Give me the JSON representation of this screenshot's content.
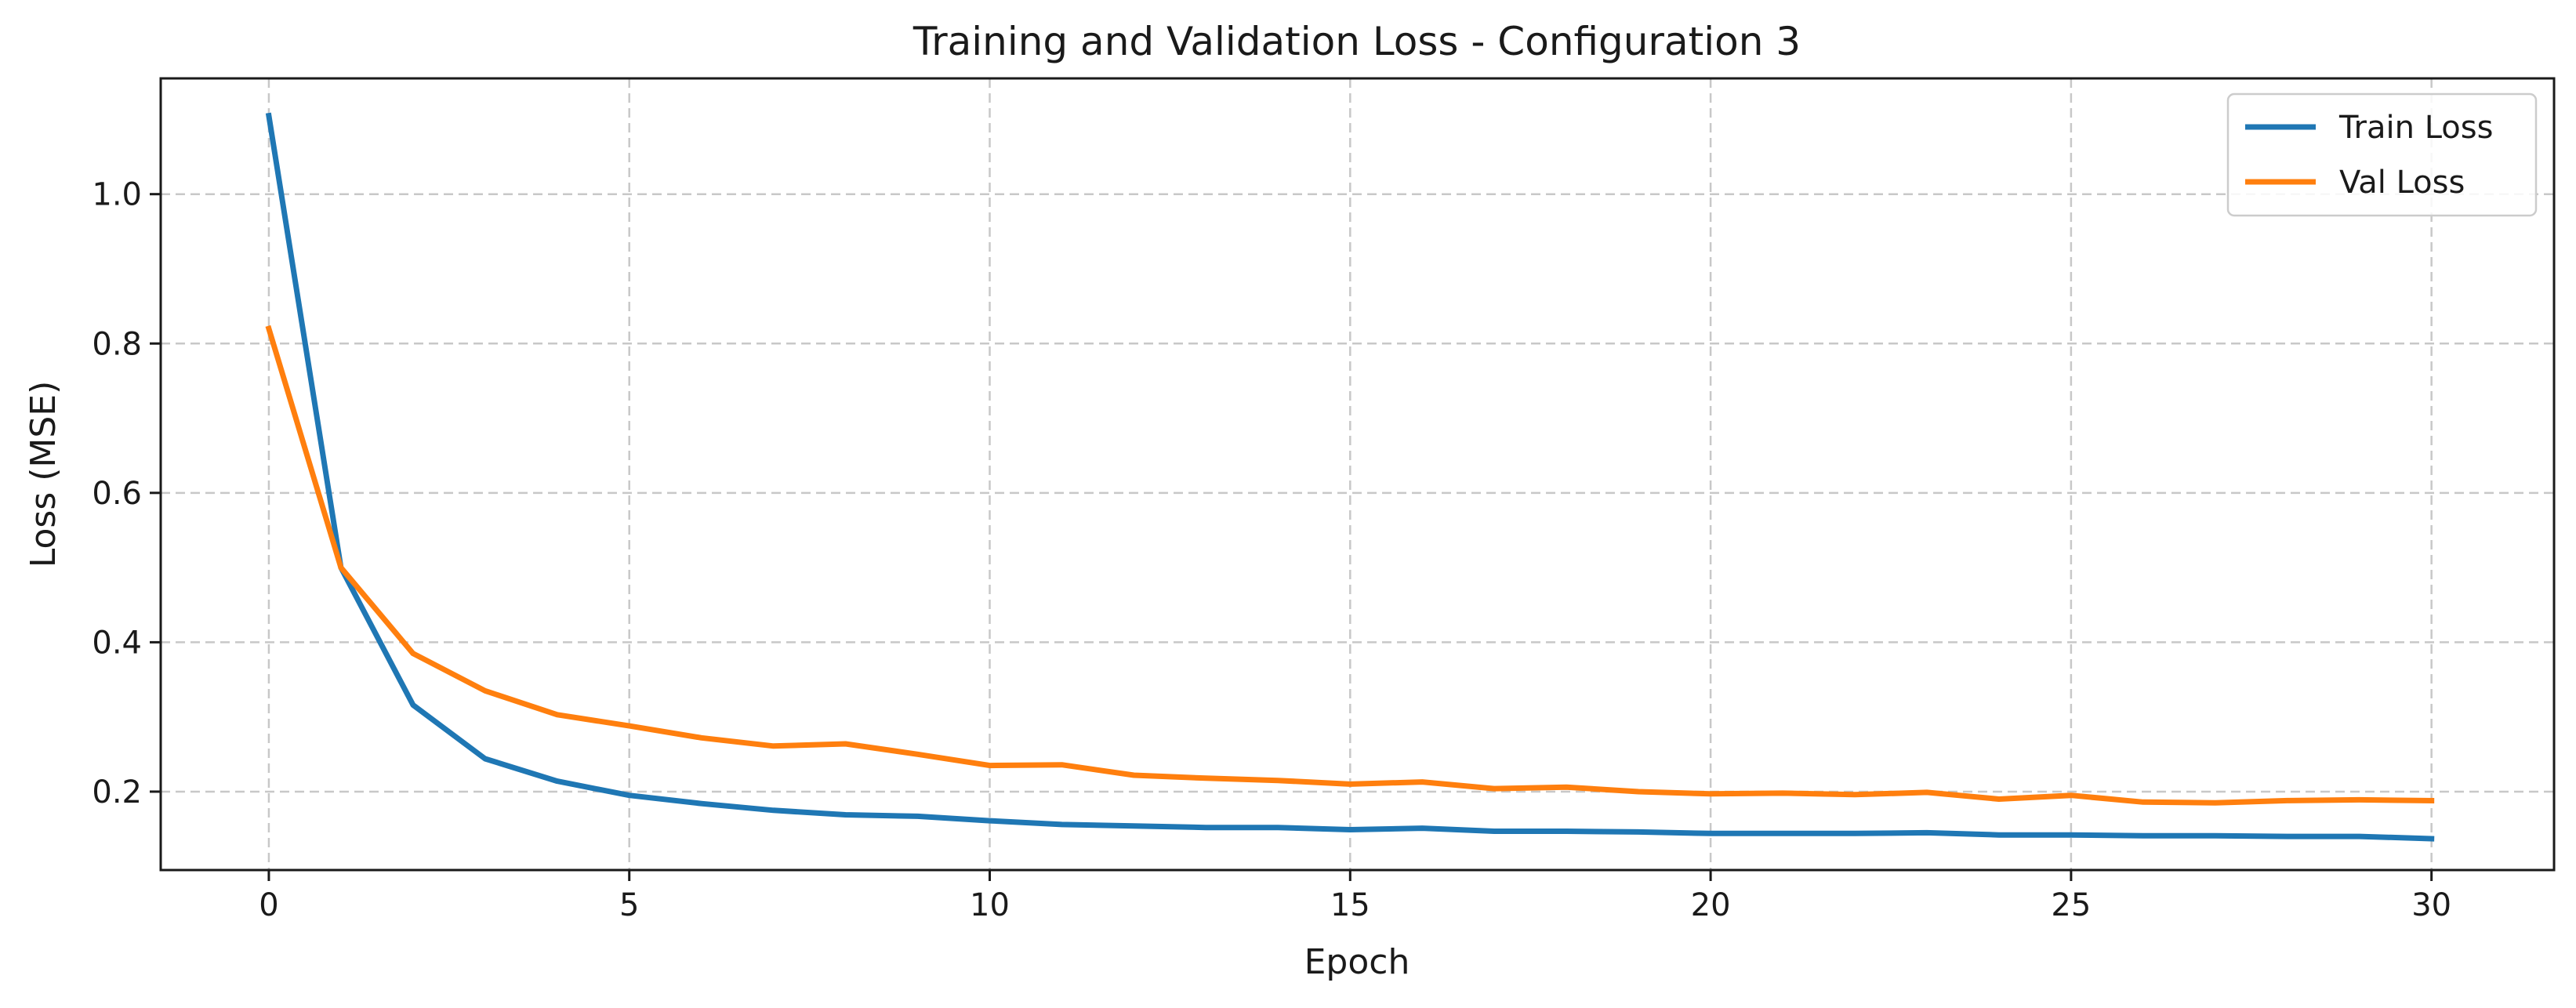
{
  "chart_data": {
    "type": "line",
    "title": "Training and Validation Loss - Configuration 3",
    "xlabel": "Epoch",
    "ylabel": "Loss (MSE)",
    "xlim": [
      -1.5,
      31.7
    ],
    "ylim": [
      0.095,
      1.155
    ],
    "xticks": [
      0,
      5,
      10,
      15,
      20,
      25,
      30
    ],
    "yticks": [
      0.2,
      0.4,
      0.6,
      0.8,
      1.0
    ],
    "xtick_labels": [
      "0",
      "5",
      "10",
      "15",
      "20",
      "25",
      "30"
    ],
    "ytick_labels": [
      "0.2",
      "0.4",
      "0.6",
      "0.8",
      "1.0"
    ],
    "grid": true,
    "legend_position": "top-right",
    "x": [
      0,
      1,
      2,
      3,
      4,
      5,
      6,
      7,
      8,
      9,
      10,
      11,
      12,
      13,
      14,
      15,
      16,
      17,
      18,
      19,
      20,
      21,
      22,
      23,
      24,
      25,
      26,
      27,
      28,
      29,
      30
    ],
    "series": [
      {
        "name": "Train Loss",
        "color": "#1f77b4",
        "values": [
          1.105,
          0.5,
          0.316,
          0.244,
          0.214,
          0.195,
          0.184,
          0.175,
          0.169,
          0.167,
          0.161,
          0.156,
          0.154,
          0.152,
          0.152,
          0.149,
          0.151,
          0.147,
          0.147,
          0.146,
          0.144,
          0.144,
          0.144,
          0.145,
          0.142,
          0.142,
          0.141,
          0.141,
          0.14,
          0.14,
          0.137
        ]
      },
      {
        "name": "Val Loss",
        "color": "#ff7f0e",
        "values": [
          0.82,
          0.5,
          0.385,
          0.335,
          0.303,
          0.288,
          0.272,
          0.261,
          0.264,
          0.25,
          0.235,
          0.236,
          0.222,
          0.218,
          0.215,
          0.21,
          0.213,
          0.204,
          0.206,
          0.2,
          0.197,
          0.198,
          0.196,
          0.199,
          0.19,
          0.195,
          0.186,
          0.185,
          0.188,
          0.189,
          0.188
        ]
      }
    ]
  }
}
